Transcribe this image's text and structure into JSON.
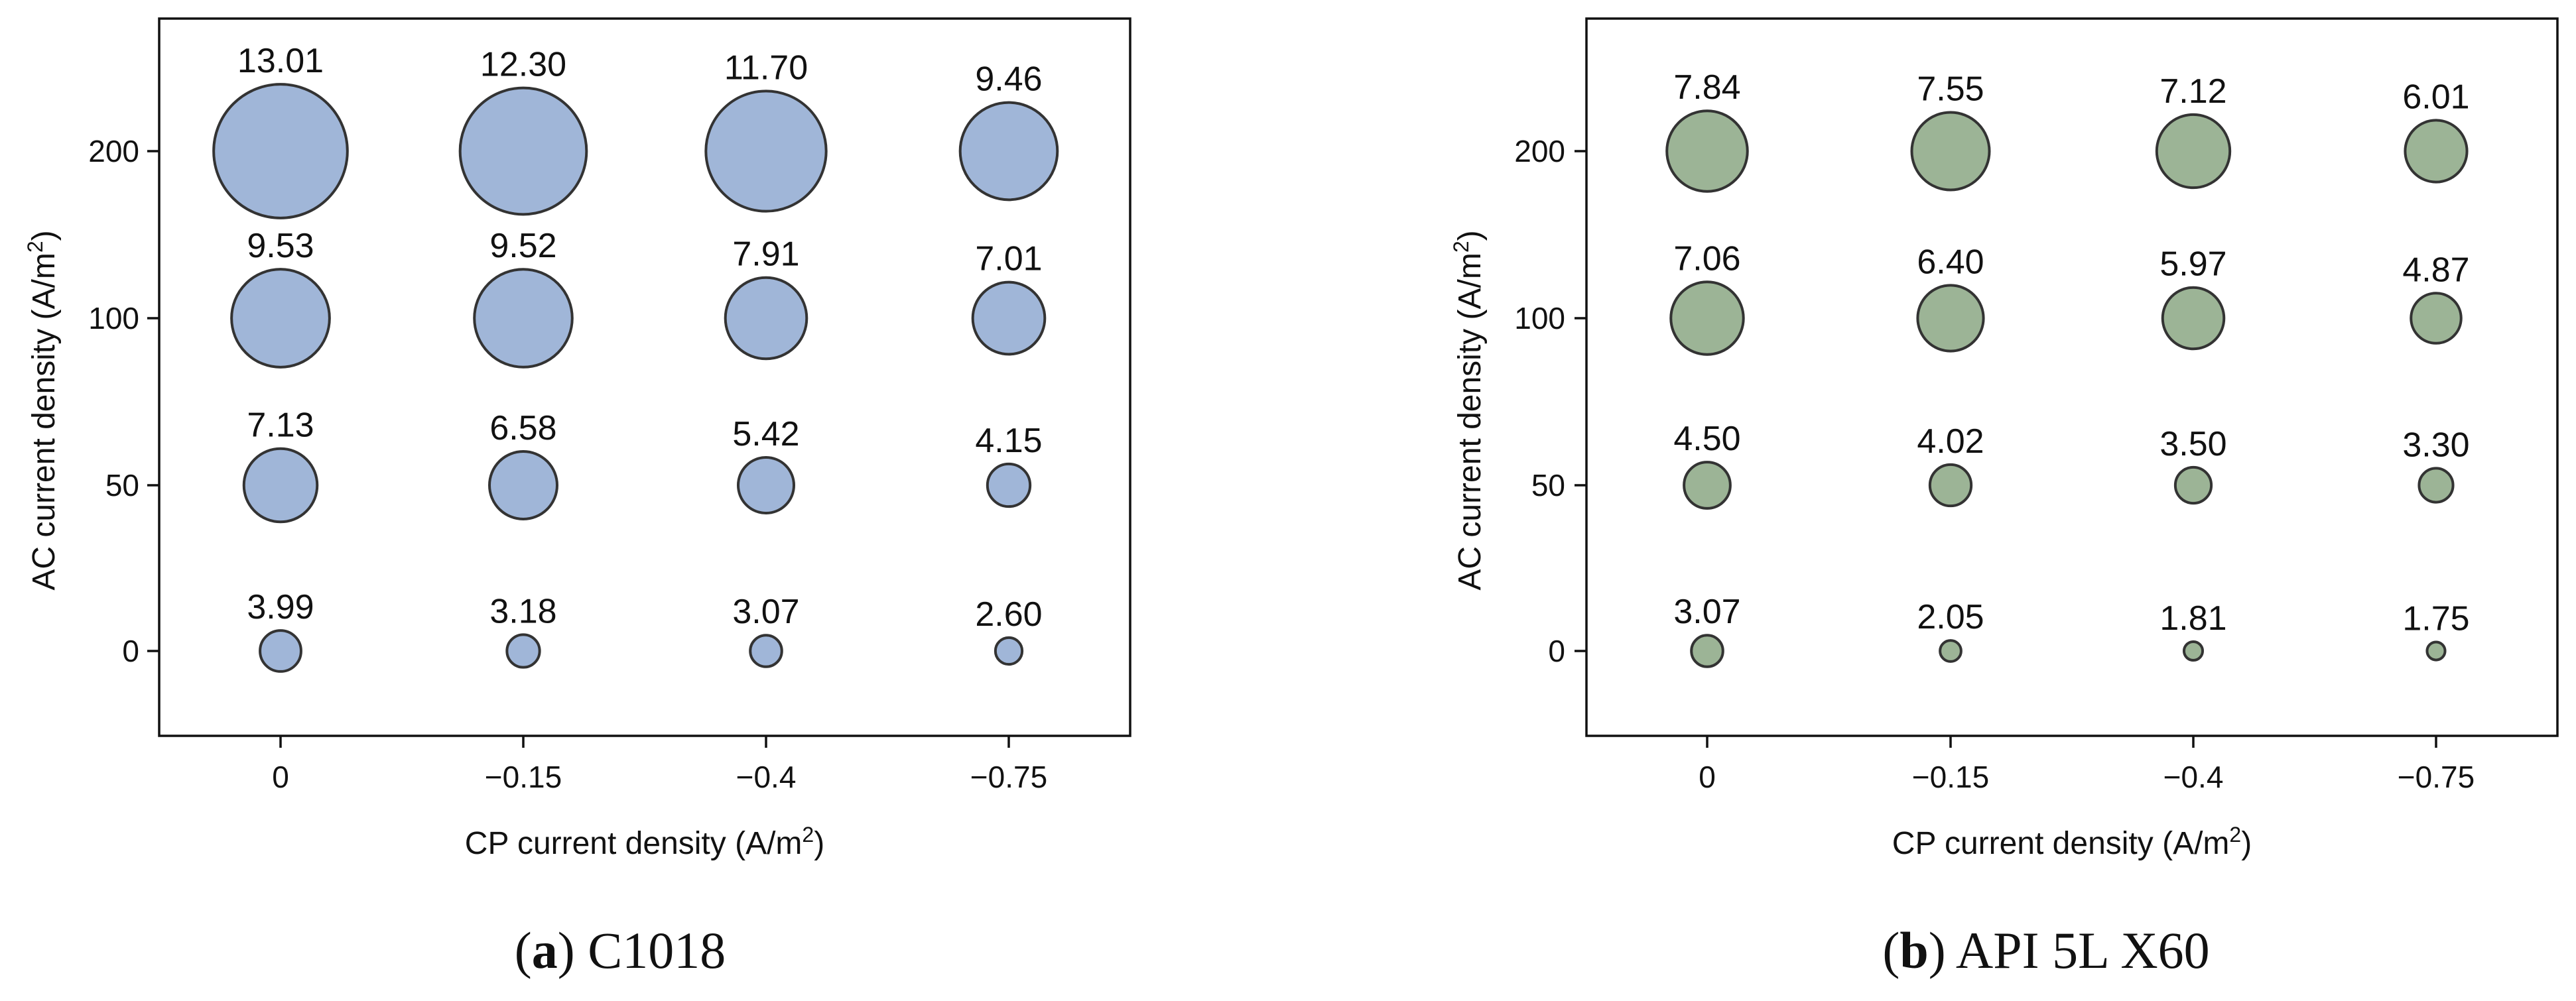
{
  "chart_data": [
    {
      "type": "bubble",
      "caption_letter": "a",
      "caption_name": "C1018",
      "xlabel": "CP current density (A/m",
      "xlabel_sup": "2",
      "xlabel_close": ")",
      "ylabel": "AC current density (A/m",
      "ylabel_sup": "2",
      "ylabel_close": ")",
      "x_categories": [
        "0",
        "−0.15",
        "−0.4",
        "−0.75"
      ],
      "y_categories": [
        "0",
        "50",
        "100",
        "200"
      ],
      "bubble_color": "#a0b6d8",
      "values": [
        [
          3.99,
          3.18,
          3.07,
          2.6
        ],
        [
          7.13,
          6.58,
          5.42,
          4.15
        ],
        [
          9.53,
          9.52,
          7.91,
          7.01
        ],
        [
          13.01,
          12.3,
          11.7,
          9.46
        ]
      ],
      "value_labels": [
        [
          "3.99",
          "3.18",
          "3.07",
          "2.60"
        ],
        [
          "7.13",
          "6.58",
          "5.42",
          "4.15"
        ],
        [
          "9.53",
          "9.52",
          "7.91",
          "7.01"
        ],
        [
          "13.01",
          "12.30",
          "11.70",
          "9.46"
        ]
      ]
    },
    {
      "type": "bubble",
      "caption_letter": "b",
      "caption_name": "API 5L X60",
      "xlabel": "CP current density (A/m",
      "xlabel_sup": "2",
      "xlabel_close": ")",
      "ylabel": "AC current density (A/m",
      "ylabel_sup": "2",
      "ylabel_close": ")",
      "x_categories": [
        "0",
        "−0.15",
        "−0.4",
        "−0.75"
      ],
      "y_categories": [
        "0",
        "50",
        "100",
        "200"
      ],
      "bubble_color": "#9cb496",
      "values": [
        [
          3.07,
          2.05,
          1.81,
          1.75
        ],
        [
          4.5,
          4.02,
          3.5,
          3.3
        ],
        [
          7.06,
          6.4,
          5.97,
          4.87
        ],
        [
          7.84,
          7.55,
          7.12,
          6.01
        ]
      ],
      "value_labels": [
        [
          "3.07",
          "2.05",
          "1.81",
          "1.75"
        ],
        [
          "4.50",
          "4.02",
          "3.50",
          "3.30"
        ],
        [
          "7.06",
          "6.40",
          "5.97",
          "4.87"
        ],
        [
          "7.84",
          "7.55",
          "7.12",
          "6.01"
        ]
      ]
    }
  ]
}
